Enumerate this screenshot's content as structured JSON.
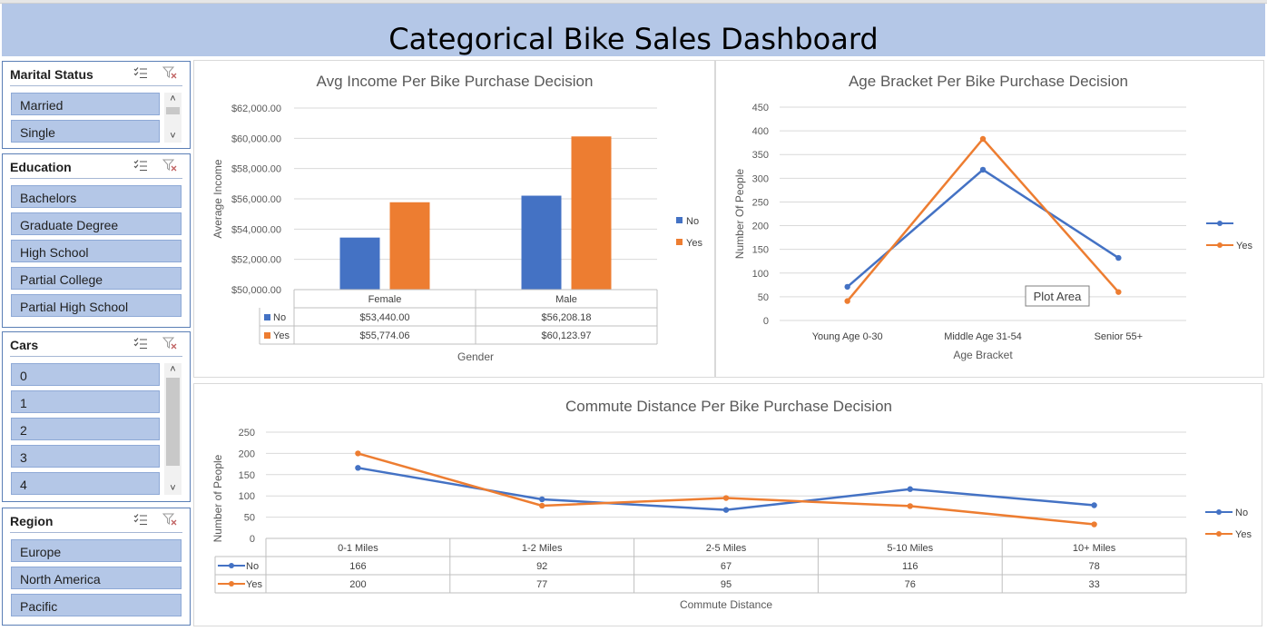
{
  "dashboard": {
    "title": "Categorical Bike Sales Dashboard"
  },
  "slicers": {
    "marital": {
      "title": "Marital Status",
      "items": [
        "Married",
        "Single"
      ]
    },
    "education": {
      "title": "Education",
      "items": [
        "Bachelors",
        "Graduate Degree",
        "High School",
        "Partial College",
        "Partial High School"
      ]
    },
    "cars": {
      "title": "Cars",
      "items": [
        "0",
        "1",
        "2",
        "3",
        "4"
      ]
    },
    "region": {
      "title": "Region",
      "items": [
        "Europe",
        "North America",
        "Pacific"
      ]
    }
  },
  "icons": {
    "multiselect": "multi-select-icon",
    "clear": "clear-filter-icon"
  },
  "colors": {
    "no": "#4472c4",
    "yes": "#ed7d31",
    "header": "#b4c7e7"
  },
  "chart_data": [
    {
      "type": "bar",
      "title": "Avg Income Per Bike Purchase Decision",
      "xlabel": "Gender",
      "ylabel": "Average Income",
      "categories": [
        "Female",
        "Male"
      ],
      "ylim": [
        50000,
        62000
      ],
      "yticks": [
        "$50,000.00",
        "$52,000.00",
        "$54,000.00",
        "$56,000.00",
        "$58,000.00",
        "$60,000.00",
        "$62,000.00"
      ],
      "series": [
        {
          "name": "No",
          "values": [
            53440.0,
            56208.18
          ],
          "labels": [
            "$53,440.00",
            "$56,208.18"
          ]
        },
        {
          "name": "Yes",
          "values": [
            55774.06,
            60123.97
          ],
          "labels": [
            "$55,774.06",
            "$60,123.97"
          ]
        }
      ],
      "legend": "right",
      "data_table": true
    },
    {
      "type": "line",
      "title": "Age Bracket Per Bike Purchase Decision",
      "xlabel": "Age Bracket",
      "ylabel": "Number Of People",
      "categories": [
        "Young Age 0-30",
        "Middle Age 31-54",
        "Senior 55+"
      ],
      "ylim": [
        0,
        450
      ],
      "yticks": [
        "0",
        "50",
        "100",
        "150",
        "200",
        "250",
        "300",
        "350",
        "400",
        "450"
      ],
      "series": [
        {
          "name": "",
          "values": [
            71,
            318,
            132
          ]
        },
        {
          "name": "Yes",
          "values": [
            41,
            383,
            60
          ]
        }
      ],
      "annotation": "Plot Area",
      "legend": "right"
    },
    {
      "type": "line",
      "title": "Commute Distance Per Bike Purchase Decision",
      "xlabel": "Commute Distance",
      "ylabel": "Number of People",
      "categories": [
        "0-1 Miles",
        "1-2 Miles",
        "2-5 Miles",
        "5-10 Miles",
        "10+ Miles"
      ],
      "ylim": [
        0,
        250
      ],
      "yticks": [
        "0",
        "50",
        "100",
        "150",
        "200",
        "250"
      ],
      "series": [
        {
          "name": "No",
          "values": [
            166,
            92,
            67,
            116,
            78
          ],
          "labels": [
            "166",
            "92",
            "67",
            "116",
            "78"
          ]
        },
        {
          "name": "Yes",
          "values": [
            200,
            77,
            95,
            76,
            33
          ],
          "labels": [
            "200",
            "77",
            "95",
            "76",
            "33"
          ]
        }
      ],
      "legend": "right",
      "data_table": true
    }
  ]
}
